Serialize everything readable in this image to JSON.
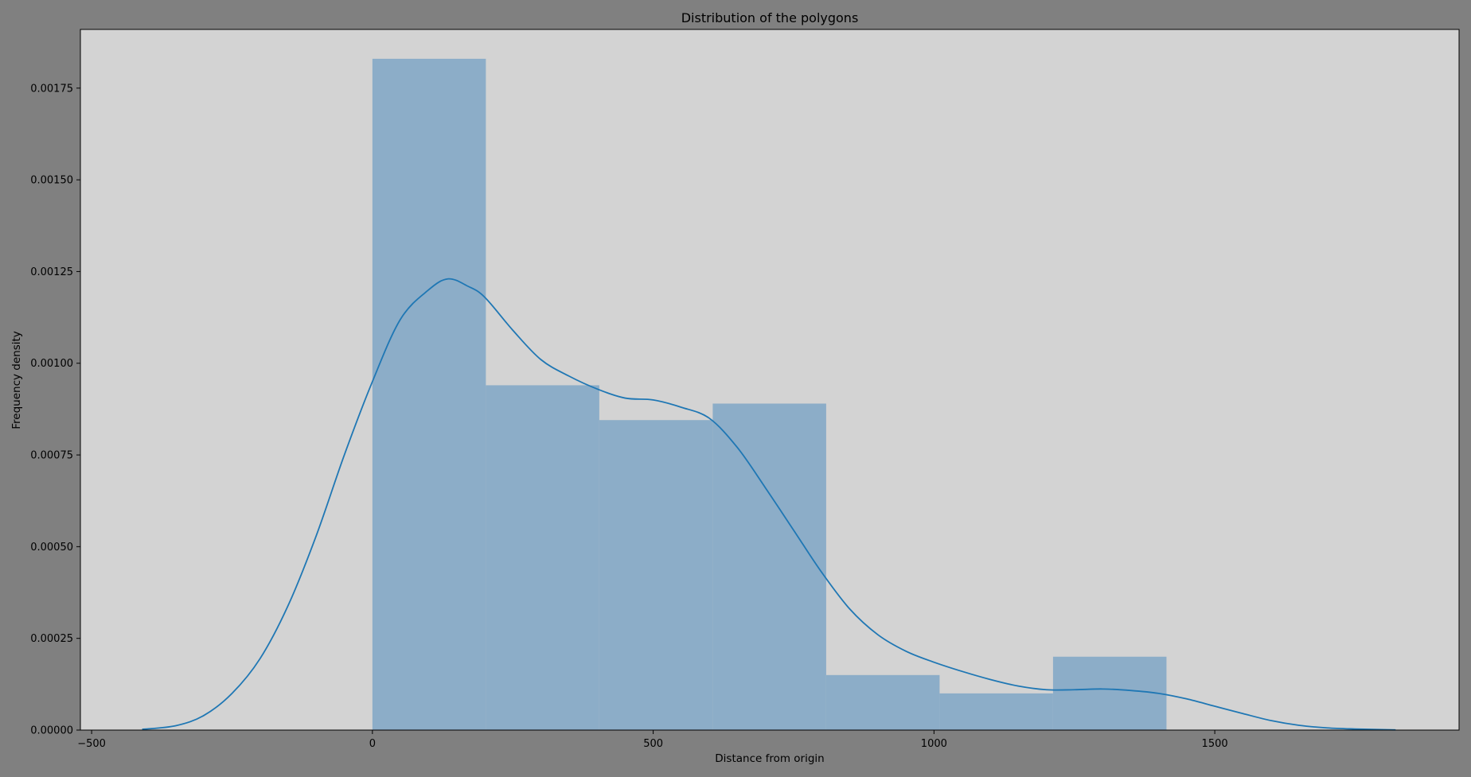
{
  "chart_data": {
    "type": "bar",
    "title": "Distribution of the polygons",
    "xlabel": "Distance from origin",
    "ylabel": "Frequency density",
    "xlim": [
      -520,
      1935
    ],
    "ylim": [
      0,
      0.00191
    ],
    "xticks": [
      -500,
      0,
      500,
      1000,
      1500
    ],
    "xtick_labels": [
      "−500",
      "0",
      "500",
      "1000",
      "1500"
    ],
    "yticks": [
      0,
      0.00025,
      0.0005,
      0.00075,
      0.001,
      0.00125,
      0.0015,
      0.00175
    ],
    "ytick_labels": [
      "0.00000",
      "0.00025",
      "0.00050",
      "0.00075",
      "0.00100",
      "0.00125",
      "0.00150",
      "0.00175"
    ],
    "grid": false,
    "histogram": {
      "bin_edges": [
        0,
        202,
        404,
        606,
        808,
        1010,
        1212,
        1414
      ],
      "values": [
        0.00183,
        0.00094,
        0.000845,
        0.00089,
        0.00015,
        0.0001,
        0.0002
      ]
    },
    "kde": {
      "x": [
        -410,
        -350,
        -300,
        -250,
        -200,
        -150,
        -100,
        -50,
        0,
        50,
        100,
        135,
        170,
        200,
        250,
        300,
        350,
        400,
        450,
        500,
        550,
        600,
        650,
        700,
        750,
        800,
        850,
        900,
        950,
        1000,
        1050,
        1100,
        1150,
        1200,
        1250,
        1300,
        1350,
        1400,
        1450,
        1500,
        1550,
        1600,
        1650,
        1700,
        1750,
        1822
      ],
      "y": [
        2e-06,
        1.2e-05,
        4e-05,
        0.0001,
        0.000195,
        0.00034,
        0.00053,
        0.00075,
        0.00095,
        0.00112,
        0.0012,
        0.00123,
        0.00121,
        0.00118,
        0.00109,
        0.00101,
        0.000965,
        0.00093,
        0.000905,
        0.0009,
        0.00088,
        0.00085,
        0.00077,
        0.00066,
        0.000545,
        0.00043,
        0.00033,
        0.00026,
        0.000215,
        0.000185,
        0.00016,
        0.000138,
        0.00012,
        0.00011,
        0.00011,
        0.000112,
        0.000108,
        0.0001,
        8.5e-05,
        6.5e-05,
        4.5e-05,
        2.6e-05,
        1.3e-05,
        6e-06,
        3e-06,
        5e-07
      ]
    },
    "colors": {
      "figure_background": "#808080",
      "axes_background": "#d3d3d3",
      "bar": "#8cadc8",
      "kde_line": "#1f77b4"
    }
  }
}
